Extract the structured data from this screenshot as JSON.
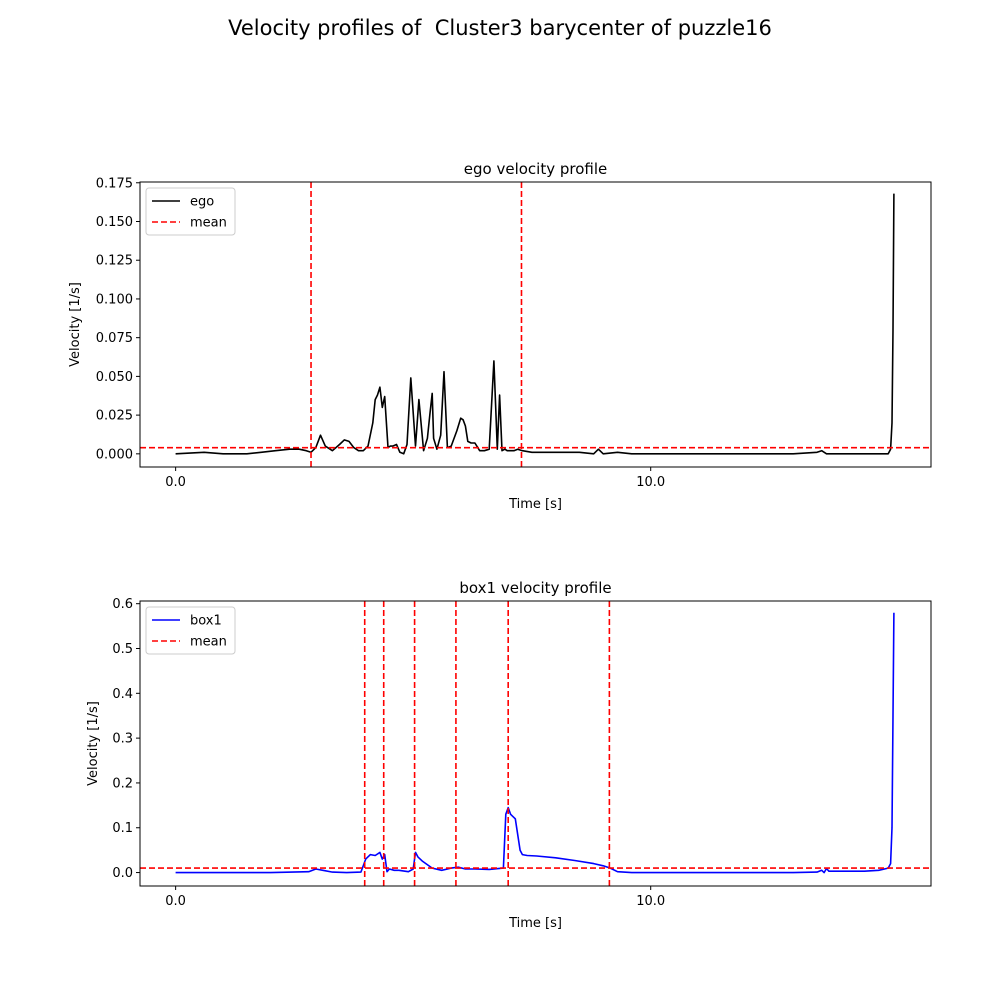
{
  "figure": {
    "title": "Velocity profiles of  Cluster3 barycenter of puzzle16"
  },
  "chart_data": [
    {
      "type": "line",
      "title": "ego velocity profile",
      "xlabel": "Time [s]",
      "ylabel": "Velocity [1/s]",
      "xlim": [
        -0.75,
        15.9
      ],
      "ylim": [
        -0.0085,
        0.1755
      ],
      "xticks": [
        0,
        10
      ],
      "xtick_labels": [
        "0.0",
        "10.0"
      ],
      "yticks": [
        0,
        0.025,
        0.05,
        0.075,
        0.1,
        0.125,
        0.15,
        0.175
      ],
      "ytick_labels": [
        "0.000",
        "0.025",
        "0.050",
        "0.075",
        "0.100",
        "0.125",
        "0.150",
        "0.175"
      ],
      "legend_position": "upper-left",
      "series": [
        {
          "name": "ego",
          "color": "#000000",
          "style": "solid",
          "x": [
            0,
            0.6,
            1.0,
            1.5,
            1.8,
            2.1,
            2.4,
            2.6,
            2.75,
            2.85,
            2.95,
            3.05,
            3.15,
            3.3,
            3.45,
            3.55,
            3.65,
            3.75,
            3.85,
            3.95,
            4.05,
            4.15,
            4.2,
            4.25,
            4.3,
            4.35,
            4.4,
            4.47,
            4.52,
            4.57,
            4.65,
            4.72,
            4.8,
            4.87,
            4.95,
            5.05,
            5.12,
            5.22,
            5.3,
            5.35,
            5.4,
            5.43,
            5.5,
            5.58,
            5.65,
            5.72,
            5.8,
            5.92,
            6.0,
            6.05,
            6.1,
            6.15,
            6.22,
            6.3,
            6.4,
            6.5,
            6.6,
            6.7,
            6.77,
            6.82,
            6.87,
            6.93,
            6.98,
            7.05,
            7.12,
            7.2,
            7.3,
            7.5,
            8.0,
            8.5,
            8.8,
            8.9,
            9.0,
            9.3,
            9.6,
            10.0,
            11.0,
            12.0,
            13.0,
            13.5,
            13.6,
            13.7,
            14.0,
            14.5,
            15.0,
            15.05,
            15.08,
            15.1,
            15.12
          ],
          "y": [
            0.0,
            0.001,
            0.0,
            0.0,
            0.001,
            0.002,
            0.003,
            0.003,
            0.002,
            0.001,
            0.004,
            0.012,
            0.005,
            0.002,
            0.006,
            0.009,
            0.008,
            0.004,
            0.002,
            0.002,
            0.005,
            0.02,
            0.035,
            0.038,
            0.043,
            0.03,
            0.037,
            0.004,
            0.005,
            0.005,
            0.006,
            0.001,
            0.0,
            0.006,
            0.049,
            0.005,
            0.035,
            0.002,
            0.01,
            0.025,
            0.039,
            0.01,
            0.003,
            0.012,
            0.053,
            0.004,
            0.005,
            0.015,
            0.023,
            0.022,
            0.018,
            0.008,
            0.007,
            0.007,
            0.002,
            0.002,
            0.003,
            0.06,
            0.003,
            0.038,
            0.002,
            0.003,
            0.002,
            0.002,
            0.002,
            0.003,
            0.002,
            0.001,
            0.001,
            0.001,
            0.0,
            0.003,
            0.0,
            0.001,
            0.0,
            0.0,
            0.0,
            0.0,
            0.0,
            0.001,
            0.002,
            0.0,
            0.0,
            0.0,
            0.0,
            0.003,
            0.02,
            0.08,
            0.168
          ]
        },
        {
          "name": "mean",
          "color": "#ff0000",
          "style": "dashed",
          "hlines": [
            0.004
          ],
          "vlines": [
            2.85,
            7.28
          ]
        }
      ]
    },
    {
      "type": "line",
      "title": "box1 velocity profile",
      "xlabel": "Time [s]",
      "ylabel": "Velocity [1/s]",
      "xlim": [
        -0.75,
        15.9
      ],
      "ylim": [
        -0.03,
        0.606
      ],
      "xticks": [
        0,
        10
      ],
      "xtick_labels": [
        "0.0",
        "10.0"
      ],
      "yticks": [
        0,
        0.1,
        0.2,
        0.3,
        0.4,
        0.5,
        0.6
      ],
      "ytick_labels": [
        "0.0",
        "0.1",
        "0.2",
        "0.3",
        "0.4",
        "0.5",
        "0.6"
      ],
      "legend_position": "upper-left",
      "series": [
        {
          "name": "box1",
          "color": "#0000ff",
          "style": "solid",
          "x": [
            0,
            1.0,
            2.0,
            2.8,
            2.95,
            3.1,
            3.3,
            3.6,
            3.9,
            4.0,
            4.1,
            4.2,
            4.3,
            4.35,
            4.4,
            4.45,
            4.5,
            4.6,
            4.7,
            4.9,
            5.0,
            5.05,
            5.1,
            5.2,
            5.4,
            5.6,
            5.8,
            5.95,
            6.1,
            6.3,
            6.6,
            6.9,
            6.95,
            7.0,
            7.05,
            7.15,
            7.25,
            7.3,
            7.4,
            7.6,
            8.0,
            8.4,
            8.8,
            9.0,
            9.15,
            9.3,
            9.6,
            10.0,
            11.0,
            12.0,
            13.0,
            13.5,
            13.6,
            13.65,
            13.7,
            13.75,
            14.0,
            14.5,
            14.8,
            15.0,
            15.05,
            15.08,
            15.1,
            15.12
          ],
          "y": [
            0.0,
            0.0,
            0.0,
            0.002,
            0.008,
            0.005,
            0.001,
            0.0,
            0.001,
            0.03,
            0.04,
            0.038,
            0.045,
            0.03,
            0.04,
            0.002,
            0.008,
            0.005,
            0.005,
            0.002,
            0.008,
            0.045,
            0.035,
            0.025,
            0.01,
            0.005,
            0.01,
            0.012,
            0.008,
            0.008,
            0.007,
            0.01,
            0.13,
            0.145,
            0.13,
            0.12,
            0.05,
            0.04,
            0.038,
            0.037,
            0.033,
            0.027,
            0.02,
            0.015,
            0.01,
            0.002,
            0.0,
            0.0,
            0.0,
            0.0,
            0.0,
            0.001,
            0.005,
            0.0,
            0.009,
            0.003,
            0.003,
            0.003,
            0.005,
            0.01,
            0.02,
            0.1,
            0.35,
            0.58
          ]
        },
        {
          "name": "mean",
          "color": "#ff0000",
          "style": "dashed",
          "hlines": [
            0.01
          ],
          "vlines": [
            3.98,
            4.38,
            5.03,
            5.9,
            7.0,
            9.13
          ]
        }
      ]
    }
  ]
}
